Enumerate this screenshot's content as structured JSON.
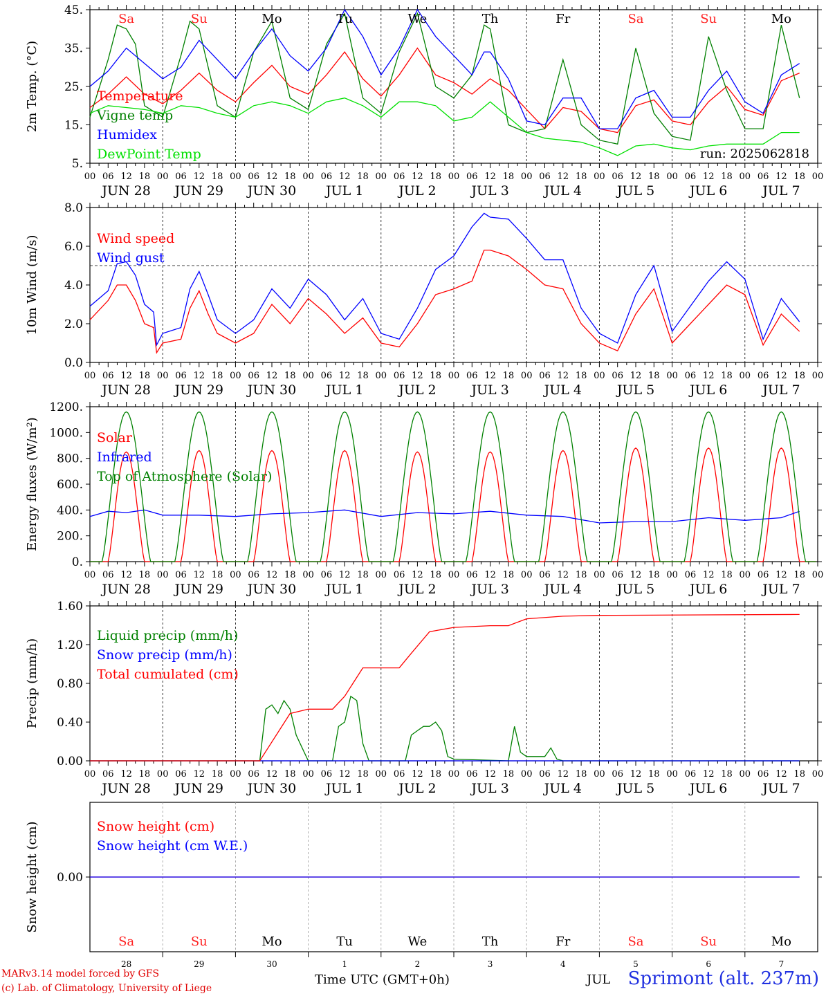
{
  "x_axis": {
    "hour_ticks": [
      "00",
      "06",
      "12",
      "18"
    ],
    "date_labels": [
      "JUN 28",
      "JUN 29",
      "JUN 30",
      "JUL  1",
      "JUL  2",
      "JUL  3",
      "JUL  4",
      "JUL  5",
      "JUL  6",
      "JUL  7"
    ],
    "day_names": [
      "Sa",
      "Su",
      "Mo",
      "Tu",
      "We",
      "Th",
      "Fr",
      "Sa",
      "Su",
      "Mo"
    ],
    "day_colors": [
      "#ff2020",
      "#ff2020",
      "#000000",
      "#000000",
      "#000000",
      "#000000",
      "#000000",
      "#ff2020",
      "#ff2020",
      "#000000"
    ],
    "bottom_day_numbers": [
      "28",
      "29",
      "30",
      "1",
      "2",
      "3",
      "4",
      "5",
      "6",
      "7"
    ]
  },
  "colors": {
    "red": "#ff0000",
    "green": "#008000",
    "blue": "#0000ff",
    "lightgreen": "#00e000"
  },
  "chart_data": [
    {
      "type": "line",
      "ylabel": "2m Temp. (°C)",
      "ylim": [
        5,
        45
      ],
      "yticks": [
        "5.",
        "15.",
        "25.",
        "35.",
        "45."
      ],
      "annotation": "run: 2025062818",
      "series": [
        {
          "name": "Temperature",
          "color": "#ff0000",
          "x": [
            0,
            6,
            12,
            18,
            24,
            30,
            36,
            42,
            48,
            54,
            60,
            66,
            72,
            78,
            84,
            90,
            96,
            102,
            108,
            114,
            120,
            126,
            132,
            138,
            144,
            150,
            156,
            162,
            168,
            174,
            180,
            186,
            192,
            198,
            204,
            210,
            216,
            222,
            228,
            234
          ],
          "y": [
            19.5,
            23,
            27.5,
            23,
            20.5,
            24,
            28.5,
            24,
            21,
            26,
            30.5,
            25,
            23,
            28,
            34,
            27,
            22.5,
            28,
            35,
            28,
            26,
            23,
            27,
            24,
            19,
            14,
            19.5,
            18.5,
            14,
            13,
            20,
            21.5,
            16,
            15,
            21,
            25,
            19,
            17.5,
            26.5,
            28.5
          ]
        },
        {
          "name": "Vigne temp",
          "color": "#008000",
          "x": [
            0,
            6,
            9,
            12,
            15,
            18,
            24,
            30,
            33,
            36,
            42,
            48,
            54,
            60,
            66,
            72,
            78,
            84,
            90,
            96,
            102,
            108,
            114,
            120,
            126,
            130,
            132,
            138,
            144,
            150,
            156,
            162,
            168,
            174,
            180,
            186,
            192,
            198,
            204,
            210,
            216,
            222,
            228,
            234
          ],
          "y": [
            17,
            32,
            41,
            40,
            36,
            20,
            17,
            33,
            42,
            40,
            20,
            17,
            34,
            42,
            22,
            19,
            36,
            44,
            22,
            18,
            34,
            44,
            25,
            22,
            28,
            41,
            40,
            15,
            13,
            14,
            32,
            15,
            11,
            10,
            35,
            18,
            12,
            11,
            38,
            24,
            14,
            14,
            41,
            22
          ]
        },
        {
          "name": "Humidex",
          "color": "#0000ff",
          "x": [
            0,
            6,
            12,
            18,
            24,
            30,
            36,
            42,
            48,
            54,
            60,
            66,
            72,
            78,
            84,
            90,
            96,
            102,
            108,
            114,
            120,
            126,
            130,
            132,
            138,
            144,
            150,
            156,
            162,
            168,
            174,
            180,
            186,
            192,
            198,
            204,
            210,
            216,
            222,
            228,
            234
          ],
          "y": [
            25,
            29,
            35,
            31,
            27,
            30,
            37,
            32,
            27,
            34,
            40,
            33,
            29,
            35,
            45,
            38,
            28,
            35,
            45,
            38,
            33,
            28,
            34,
            34,
            27,
            16,
            15,
            22,
            22,
            14,
            14,
            22,
            24,
            17,
            17,
            24,
            29,
            21,
            18,
            28,
            31
          ]
        },
        {
          "name": "DewPoint Temp",
          "color": "#00e000",
          "x": [
            0,
            6,
            12,
            18,
            24,
            30,
            36,
            42,
            48,
            54,
            60,
            66,
            72,
            78,
            84,
            90,
            96,
            102,
            108,
            114,
            120,
            126,
            132,
            138,
            144,
            150,
            156,
            162,
            168,
            174,
            180,
            186,
            192,
            198,
            204,
            210,
            216,
            222,
            228,
            234
          ],
          "y": [
            18,
            20,
            19.5,
            19,
            18,
            20,
            19.5,
            18,
            17,
            20,
            21,
            20,
            18,
            21,
            22,
            20,
            17,
            21,
            21,
            20,
            16,
            17,
            21,
            17,
            13,
            11.5,
            11,
            10.5,
            9,
            7,
            9.5,
            10,
            9,
            8.5,
            9.5,
            10,
            10,
            10,
            13,
            13
          ]
        }
      ]
    },
    {
      "type": "line",
      "ylabel": "10m Wind (m/s)",
      "ylim": [
        0,
        8
      ],
      "yticks": [
        "0.0",
        "2.0",
        "4.0",
        "6.0",
        "8.0"
      ],
      "reference_line": 5,
      "series": [
        {
          "name": "Wind speed",
          "color": "#ff0000",
          "x": [
            0,
            6,
            9,
            12,
            15,
            18,
            21,
            22,
            24,
            30,
            33,
            36,
            39,
            42,
            48,
            54,
            60,
            66,
            72,
            78,
            84,
            90,
            96,
            102,
            108,
            114,
            120,
            126,
            130,
            132,
            138,
            144,
            150,
            156,
            162,
            168,
            174,
            180,
            186,
            192,
            198,
            204,
            210,
            216,
            222,
            228,
            234
          ],
          "y": [
            2.2,
            3.2,
            4.0,
            4.0,
            3.2,
            2.0,
            1.8,
            0.5,
            1.0,
            1.2,
            2.8,
            3.7,
            2.5,
            1.5,
            1.0,
            1.5,
            3.0,
            2.0,
            3.3,
            2.5,
            1.5,
            2.3,
            1.0,
            0.8,
            2.0,
            3.5,
            3.8,
            4.2,
            5.8,
            5.8,
            5.5,
            4.8,
            4.0,
            3.8,
            2.0,
            1.0,
            0.6,
            2.5,
            3.8,
            1.0,
            2.0,
            3.0,
            4.0,
            3.5,
            0.9,
            2.5,
            1.6
          ]
        },
        {
          "name": "Wind gust",
          "color": "#0000ff",
          "x": [
            0,
            6,
            9,
            12,
            15,
            18,
            21,
            22,
            24,
            30,
            33,
            36,
            39,
            42,
            48,
            54,
            60,
            66,
            72,
            78,
            84,
            90,
            96,
            102,
            108,
            114,
            120,
            126,
            130,
            132,
            138,
            144,
            150,
            156,
            162,
            168,
            174,
            180,
            186,
            192,
            198,
            204,
            210,
            216,
            222,
            228,
            234
          ],
          "y": [
            2.9,
            3.7,
            5.1,
            5.2,
            4.5,
            3.0,
            2.6,
            0.9,
            1.5,
            1.8,
            3.8,
            4.7,
            3.5,
            2.2,
            1.5,
            2.2,
            3.8,
            2.8,
            4.3,
            3.5,
            2.2,
            3.3,
            1.5,
            1.2,
            2.8,
            4.8,
            5.5,
            7.0,
            7.7,
            7.5,
            7.4,
            6.4,
            5.3,
            5.3,
            2.8,
            1.5,
            1.0,
            3.5,
            5.0,
            1.6,
            2.9,
            4.2,
            5.2,
            4.3,
            1.2,
            3.3,
            2.1
          ]
        }
      ]
    },
    {
      "type": "line",
      "ylabel": "Energy fluxes (W/m²)",
      "ylim": [
        0,
        1200
      ],
      "yticks": [
        "0.",
        "200.",
        "400.",
        "600.",
        "800.",
        "1000.",
        "1200."
      ],
      "series": [
        {
          "name": "Solar",
          "color": "#ff0000",
          "day_peaks": [
            850,
            860,
            860,
            860,
            850,
            850,
            860,
            880,
            880,
            880
          ]
        },
        {
          "name": "Infrared",
          "color": "#0000ff",
          "x": [
            0,
            6,
            12,
            18,
            24,
            36,
            48,
            60,
            72,
            84,
            96,
            108,
            120,
            132,
            144,
            156,
            168,
            180,
            192,
            204,
            216,
            228,
            234
          ],
          "y": [
            350,
            390,
            380,
            400,
            360,
            360,
            350,
            370,
            380,
            400,
            350,
            380,
            370,
            390,
            360,
            350,
            300,
            310,
            310,
            340,
            320,
            340,
            390
          ]
        },
        {
          "name": "Top of Atmosphere (Solar)",
          "color": "#008000",
          "day_peaks": [
            1160,
            1160,
            1160,
            1160,
            1160,
            1160,
            1160,
            1160,
            1160,
            1160
          ]
        }
      ]
    },
    {
      "type": "line",
      "ylabel": "Precip (mm/h)",
      "ylim": [
        0,
        1.8
      ],
      "yticks": [
        "0.00",
        "0.40",
        "0.80",
        "1.20",
        "1.60"
      ],
      "series": [
        {
          "name": "Liquid precip (mm/h)",
          "color": "#008000",
          "x": [
            0,
            56,
            58,
            60,
            62,
            64,
            66,
            68,
            70,
            72,
            80,
            82,
            84,
            86,
            88,
            90,
            92,
            104,
            106,
            108,
            110,
            112,
            114,
            116,
            118,
            120,
            138,
            140,
            142,
            144,
            150,
            152,
            154,
            156,
            234
          ],
          "y": [
            0,
            0,
            0.6,
            0.65,
            0.55,
            0.7,
            0.6,
            0.3,
            0.15,
            0,
            0,
            0.4,
            0.45,
            0.75,
            0.7,
            0.2,
            0,
            0,
            0.3,
            0.35,
            0.4,
            0.4,
            0.45,
            0.35,
            0.05,
            0.02,
            0,
            0.4,
            0.1,
            0.05,
            0.05,
            0.15,
            0.02,
            0,
            0
          ]
        },
        {
          "name": "Snow precip (mm/h)",
          "color": "#0000ff",
          "x": [
            0,
            234
          ],
          "y": [
            0,
            0
          ]
        },
        {
          "name": "Total cumulated (cm)",
          "color": "#ff0000",
          "x": [
            0,
            56,
            66,
            72,
            80,
            84,
            90,
            96,
            102,
            106,
            112,
            120,
            132,
            138,
            144,
            156,
            168,
            234
          ],
          "y": [
            0,
            0,
            0.55,
            0.6,
            0.6,
            0.75,
            1.08,
            1.08,
            1.08,
            1.25,
            1.5,
            1.55,
            1.57,
            1.57,
            1.65,
            1.68,
            1.69,
            1.7
          ]
        }
      ]
    },
    {
      "type": "line",
      "ylabel": "Snow height (cm)",
      "ylim": [
        -1,
        1
      ],
      "yticks": [
        "0.00"
      ],
      "series": [
        {
          "name": "Snow height (cm)",
          "color": "#ff0000",
          "x": [
            0,
            234
          ],
          "y": [
            0,
            0
          ]
        },
        {
          "name": "Snow height (cm W.E.)",
          "color": "#0000ff",
          "x": [
            0,
            234
          ],
          "y": [
            0,
            0
          ]
        }
      ]
    }
  ],
  "footer": {
    "credit_line1": "MARv3.14 model forced by GFS",
    "credit_line2": "(c) Lab. of Climatology, University of Liege",
    "x_title": "Time UTC (GMT+0h)",
    "jul_label": "JUL",
    "station": "Sprimont (alt. 237m)"
  }
}
